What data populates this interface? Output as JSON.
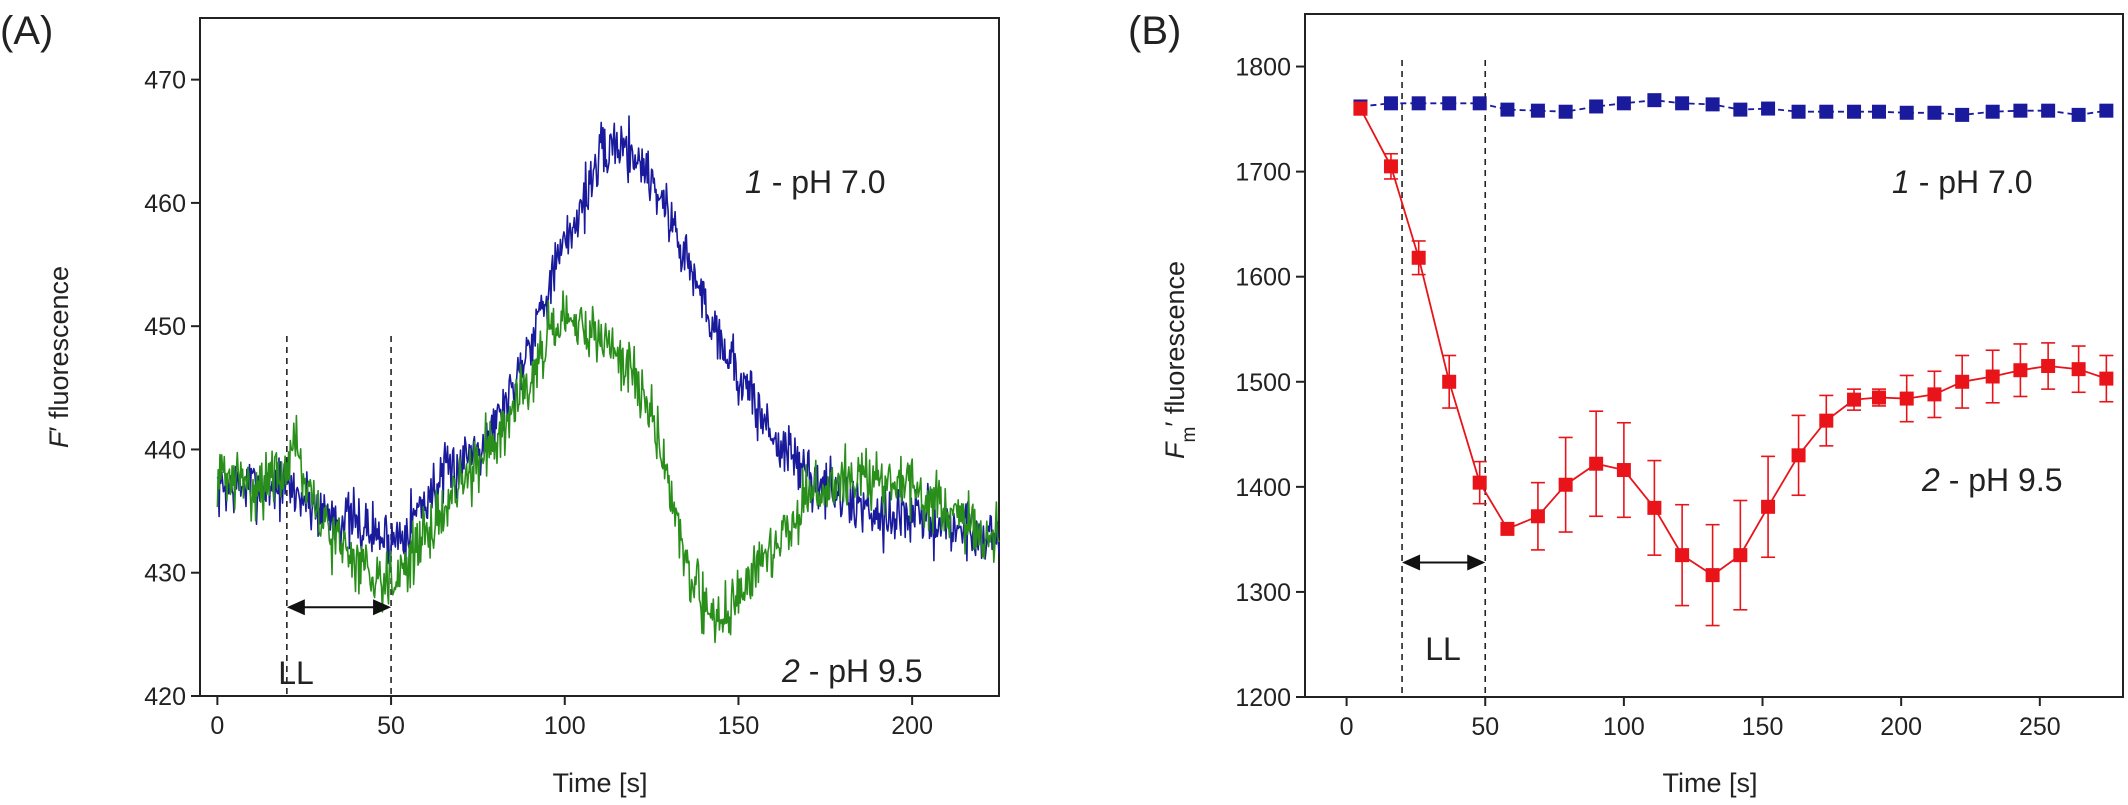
{
  "chart_data": [
    {
      "panel_label": "(A)",
      "type": "line",
      "xlabel": "Time [s]",
      "ylabel_italic": "F",
      "ylabel_rest": "′ fluorescence",
      "xlim": [
        -5,
        225
      ],
      "ylim": [
        420,
        475
      ],
      "xticks": [
        0,
        50,
        100,
        150,
        200
      ],
      "yticks": [
        420,
        430,
        440,
        450,
        460,
        470
      ],
      "grid": false,
      "dashed_lines_x": [
        20,
        50
      ],
      "arrow": {
        "from": 20,
        "to": 50,
        "y": 427.2,
        "label": "LL"
      },
      "series": [
        {
          "annotation_num": "1",
          "annotation_text": " - pH 7.0",
          "color": "#1a1a9c",
          "noise": 2.4,
          "seed": 7,
          "x": [
            0,
            10,
            20,
            30,
            40,
            50,
            55,
            60,
            70,
            80,
            85,
            90,
            95,
            100,
            105,
            110,
            115,
            120,
            125,
            130,
            140,
            150,
            160,
            170,
            180,
            190,
            200,
            210,
            220,
            225
          ],
          "y": [
            437,
            437,
            437,
            435,
            434,
            432.5,
            434,
            436,
            439,
            442,
            445,
            449,
            453,
            456.5,
            460,
            463.5,
            465,
            464,
            462,
            459,
            452,
            446,
            441,
            438,
            436,
            435,
            434.5,
            434,
            433,
            433
          ]
        },
        {
          "annotation_num": "2",
          "annotation_text": " - pH 9.5",
          "color": "#2a8f1a",
          "noise": 2.4,
          "seed": 31,
          "x": [
            0,
            10,
            20,
            22,
            25,
            30,
            40,
            45,
            50,
            55,
            60,
            70,
            80,
            90,
            95,
            100,
            105,
            110,
            115,
            120,
            125,
            130,
            135,
            140,
            145,
            150,
            160,
            170,
            180,
            190,
            200,
            210,
            220,
            225
          ],
          "y": [
            438,
            437,
            438,
            442,
            437,
            434,
            431,
            430,
            429.5,
            431,
            433,
            437,
            441,
            446,
            449,
            450,
            450,
            449,
            448,
            446,
            443,
            437,
            431,
            427,
            426.5,
            428,
            432,
            436,
            437.5,
            437.5,
            437,
            435,
            433,
            433
          ]
        }
      ]
    },
    {
      "panel_label": "(B)",
      "type": "line",
      "xlabel": "Time [s]",
      "ylabel_italic": "F",
      "ylabel_sub": "m",
      "ylabel_rest": "′ fluorescence",
      "xlim": [
        -15,
        280
      ],
      "ylim": [
        1200,
        1850
      ],
      "xticks": [
        0,
        50,
        100,
        150,
        200,
        250
      ],
      "yticks": [
        1200,
        1300,
        1400,
        1500,
        1600,
        1700,
        1800
      ],
      "grid": false,
      "dashed_lines_x": [
        20,
        50
      ],
      "arrow": {
        "from": 20,
        "to": 50,
        "y": 1328,
        "label": "LL"
      },
      "series": [
        {
          "annotation_num": "1",
          "annotation_text": " - pH 7.0",
          "color": "#1a1a9c",
          "line_style": "dashed",
          "marker": "square",
          "x": [
            5,
            16,
            26,
            37,
            48,
            58,
            69,
            79,
            90,
            100,
            111,
            121,
            132,
            142,
            152,
            163,
            173,
            183,
            192,
            202,
            212,
            222,
            233,
            243,
            253,
            264,
            274
          ],
          "y": [
            1762,
            1765,
            1765,
            1765,
            1765,
            1759,
            1758,
            1757,
            1762,
            1765,
            1768,
            1765,
            1764,
            1759,
            1760,
            1757,
            1757,
            1757,
            1757,
            1756,
            1756,
            1754,
            1757,
            1758,
            1758,
            1754,
            1758
          ]
        },
        {
          "annotation_num": "2",
          "annotation_text": " - pH 9.5",
          "color": "#e8141a",
          "line_style": "solid",
          "marker": "square",
          "x": [
            5,
            16,
            26,
            37,
            48,
            58,
            69,
            79,
            90,
            100,
            111,
            121,
            132,
            142,
            152,
            163,
            173,
            183,
            192,
            202,
            212,
            222,
            233,
            243,
            253,
            264,
            274
          ],
          "y": [
            1760,
            1705,
            1618,
            1500,
            1404,
            1360,
            1372,
            1402,
            1422,
            1416,
            1380,
            1335,
            1316,
            1335,
            1381,
            1430,
            1463,
            1483,
            1485,
            1484,
            1488,
            1500,
            1505,
            1511,
            1515,
            1512,
            1503
          ],
          "err": [
            6,
            12,
            16,
            25,
            20,
            0,
            32,
            45,
            50,
            45,
            45,
            48,
            48,
            52,
            48,
            38,
            24,
            10,
            8,
            22,
            22,
            25,
            25,
            25,
            22,
            22,
            22
          ]
        }
      ]
    }
  ]
}
